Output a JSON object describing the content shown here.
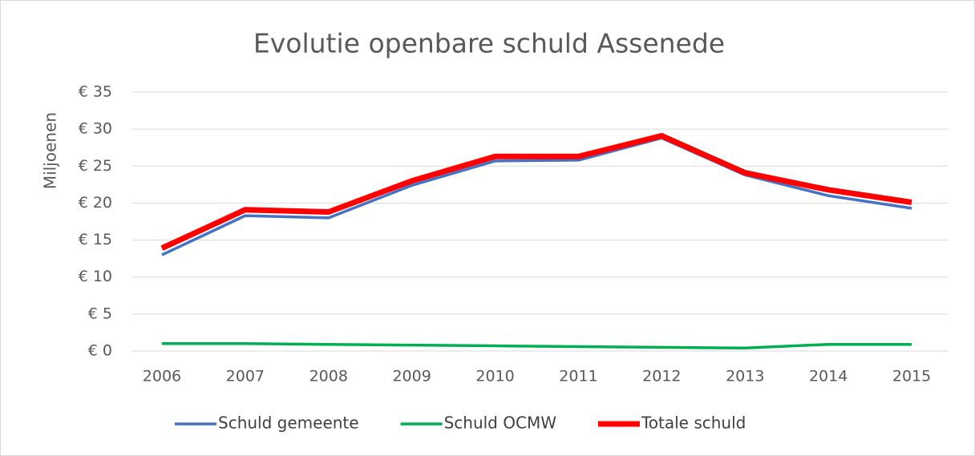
{
  "chart_data": {
    "type": "line",
    "title": "Evolutie openbare schuld Assenede",
    "y_label": "Miljoenen",
    "categories": [
      "2006",
      "2007",
      "2008",
      "2009",
      "2010",
      "2011",
      "2012",
      "2013",
      "2014",
      "2015"
    ],
    "series": [
      {
        "name": "Schuld gemeente",
        "color": "#4472c4",
        "values": [
          13.0,
          18.3,
          18.0,
          22.4,
          25.7,
          25.8,
          28.8,
          23.8,
          21.0,
          19.3
        ]
      },
      {
        "name": "Schuld OCMW",
        "color": "#00b050",
        "values": [
          1.0,
          1.0,
          0.9,
          0.8,
          0.7,
          0.6,
          0.5,
          0.4,
          0.9,
          0.9
        ]
      },
      {
        "name": "Totale schuld",
        "color": "#ff0000",
        "values": [
          13.9,
          19.1,
          18.8,
          23.0,
          26.3,
          26.3,
          29.1,
          24.1,
          21.8,
          20.1
        ]
      }
    ],
    "ylim": [
      0,
      35
    ],
    "yticks": [
      {
        "value": 0,
        "label": "€ 0"
      },
      {
        "value": 5,
        "label": "€ 5"
      },
      {
        "value": 10,
        "label": "€ 10"
      },
      {
        "value": 15,
        "label": "€ 15"
      },
      {
        "value": 20,
        "label": "€ 20"
      },
      {
        "value": 25,
        "label": "€ 25"
      },
      {
        "value": 30,
        "label": "€ 30"
      },
      {
        "value": 35,
        "label": "€ 35"
      }
    ],
    "grid": true,
    "legend": "bottom"
  }
}
